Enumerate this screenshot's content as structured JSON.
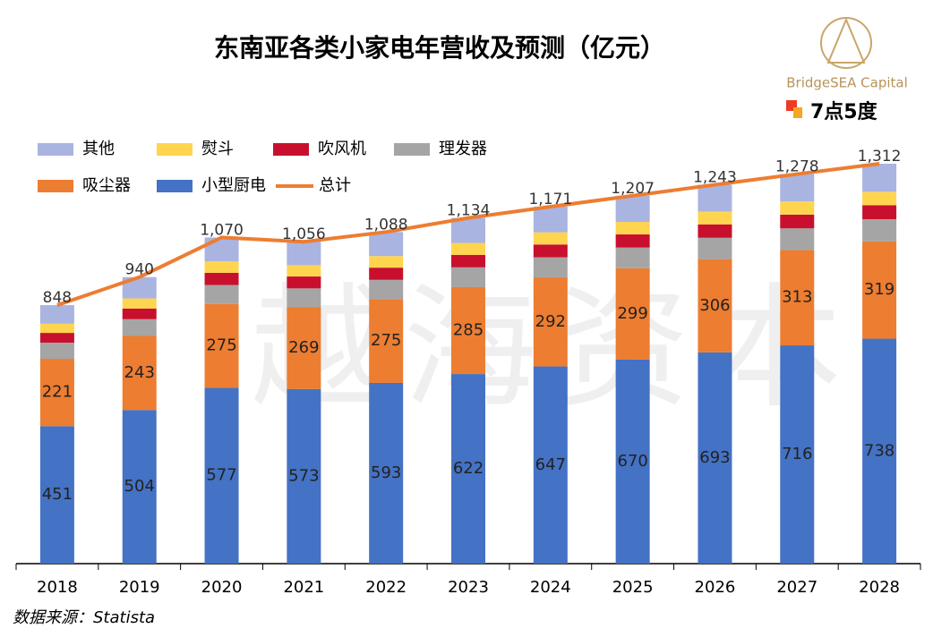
{
  "chart_data": {
    "type": "stacked_bar_line",
    "title": "东南亚各类小家电年营收及预测（亿元）",
    "source": "数据来源：Statista",
    "watermark": "越海资本",
    "logo_text": "BridgeSEA Capital",
    "logo2_text": "7点5度",
    "categories": [
      "2018",
      "2019",
      "2020",
      "2021",
      "2022",
      "2023",
      "2024",
      "2025",
      "2026",
      "2027",
      "2028"
    ],
    "ylim": [
      0,
      1400
    ],
    "series": [
      {
        "name": "其他",
        "color": "#a9b4e0",
        "values": [
          61,
          70,
          78,
          77,
          79,
          82,
          84,
          86,
          88,
          90,
          92
        ]
      },
      {
        "name": "熨斗",
        "color": "#ffd54f",
        "values": [
          30,
          33,
          38,
          37,
          38,
          39,
          40,
          41,
          42,
          43,
          44
        ]
      },
      {
        "name": "吹风机",
        "color": "#c8102e",
        "values": [
          32,
          35,
          40,
          39,
          40,
          41,
          42,
          43,
          44,
          45,
          46
        ]
      },
      {
        "name": "理发器",
        "color": "#a5a5a5",
        "values": [
          53,
          55,
          62,
          61,
          63,
          65,
          66,
          68,
          70,
          71,
          73
        ]
      },
      {
        "name": "吸尘器",
        "color": "#ed7d31",
        "values": [
          221,
          243,
          275,
          269,
          275,
          285,
          292,
          299,
          306,
          313,
          319
        ],
        "labels": true
      },
      {
        "name": "小型厨电",
        "color": "#4472c4",
        "values": [
          451,
          504,
          577,
          573,
          593,
          622,
          647,
          670,
          693,
          716,
          738
        ],
        "labels": true
      },
      {
        "name": "总计",
        "color": "#ed7d31",
        "type": "line",
        "values": [
          848,
          940,
          1070,
          1056,
          1088,
          1134,
          1171,
          1207,
          1243,
          1278,
          1312
        ],
        "value_labels": [
          "848",
          "940",
          "1,070",
          "1,056",
          "1,088",
          "1,134",
          "1,171",
          "1,207",
          "1,243",
          "1,278",
          "1,312"
        ]
      }
    ]
  }
}
